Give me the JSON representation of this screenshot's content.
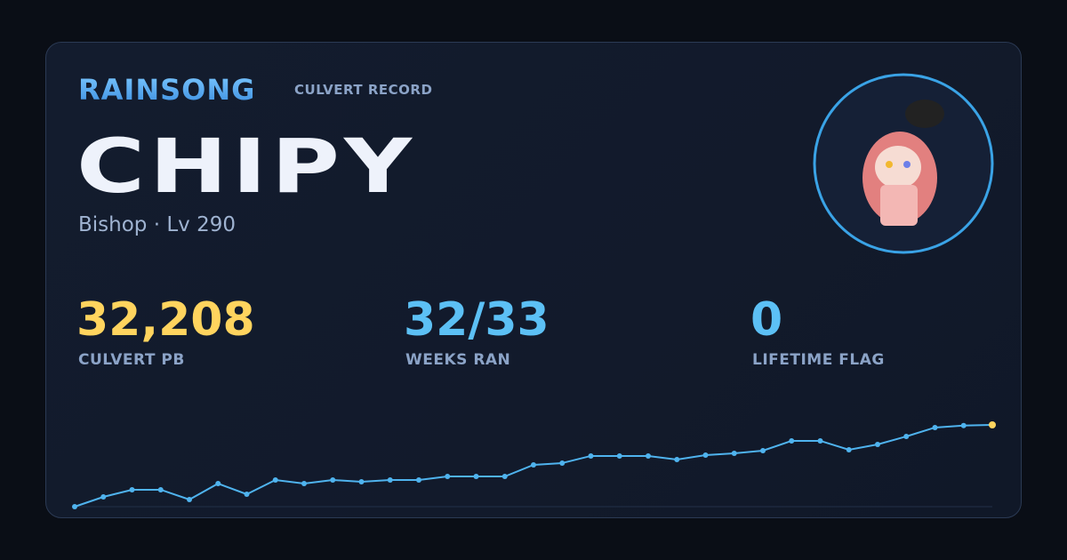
{
  "header": {
    "brand": "RAINSONG",
    "subtitle": "CULVERT RECORD"
  },
  "player": {
    "name": "CHIPY",
    "info": "Bishop · Lv 290"
  },
  "stats": [
    {
      "value": "32,208",
      "label": "CULVERT PB",
      "color": "#ffd45e"
    },
    {
      "value": "32/33",
      "label": "WEEKS RAN",
      "color": "#5cc0f5"
    },
    {
      "value": "0",
      "label": "LIFETIME FLAG",
      "color": "#5cc0f5"
    }
  ],
  "chart_data": {
    "type": "line",
    "color": "#4fb3ee",
    "highlight_color": "#ffd45e",
    "values": [
      19000,
      20580,
      21730,
      21730,
      20150,
      22730,
      21010,
      23310,
      22730,
      23310,
      23020,
      23310,
      23310,
      23880,
      23880,
      23880,
      25750,
      26040,
      27190,
      27190,
      27190,
      26610,
      27330,
      27620,
      28050,
      29630,
      29630,
      28190,
      29050,
      30340,
      31780,
      32100,
      32208
    ]
  }
}
